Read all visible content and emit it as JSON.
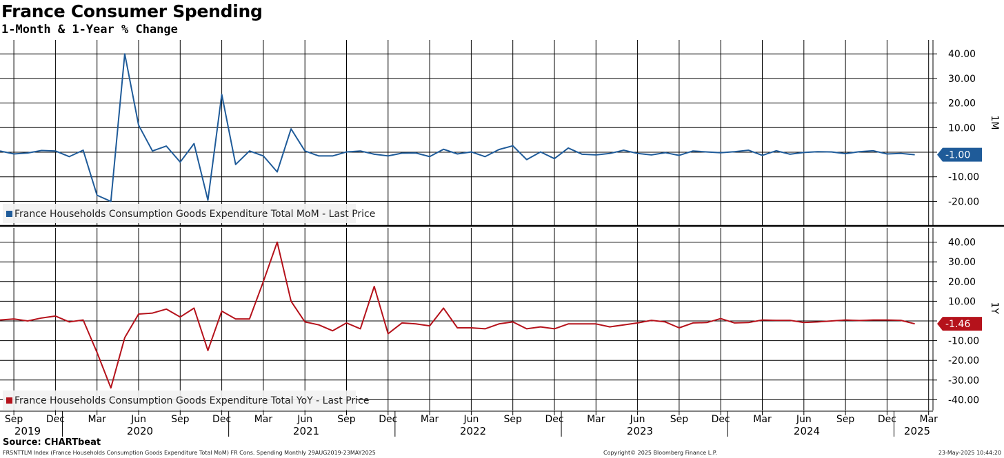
{
  "title": "France Consumer Spending",
  "subtitle": "1-Month & 1-Year % Change",
  "source": "Source: CHARTbeat",
  "footer": {
    "index_text": "FRSNTTLM Index (France Households Consumption Goods Expenditure Total MoM) FR Cons. Spending  Monthly 29AUG2019-23MAY2025",
    "copyright": "Copyright© 2025 Bloomberg Finance L.P.",
    "timestamp": "23-May-2025 10:44:20"
  },
  "colors": {
    "mom": "#1f5b99",
    "yoy": "#b5121b",
    "grid": "#000000"
  },
  "x_axis": {
    "month_ticks": [
      "Sep",
      "Dec",
      "Mar",
      "Jun",
      "Sep",
      "Dec",
      "Mar",
      "Jun",
      "Sep",
      "Dec",
      "Mar",
      "Jun",
      "Sep",
      "Dec",
      "Mar",
      "Jun",
      "Sep",
      "Dec",
      "Mar",
      "Jun",
      "Sep",
      "Dec",
      "Mar"
    ],
    "year_labels": [
      "2019",
      "2020",
      "2021",
      "2022",
      "2023",
      "2024",
      "2025"
    ]
  },
  "chart_data": [
    {
      "type": "line",
      "panel": "top",
      "x_start": "2019-08",
      "x_end": "2025-04",
      "ylim": [
        -30,
        45
      ],
      "yticks": [
        "40.00",
        "30.00",
        "20.00",
        "10.00",
        "0.00",
        "-10.00",
        "-20.00"
      ],
      "axis_label": "1M",
      "last_value_label": "-1.00",
      "legend_position": "bottom-left",
      "series": [
        {
          "name": "France Households Consumption Goods Expenditure Total MoM - Last Price",
          "values": [
            0.5,
            -0.7,
            -0.3,
            0.7,
            0.5,
            -1.8,
            0.8,
            -17.5,
            -20,
            40,
            11,
            0.5,
            2.5,
            -4,
            3.5,
            -19.5,
            23.5,
            -5,
            0.5,
            -1.5,
            -8,
            9.5,
            0.5,
            -1.5,
            -1.5,
            0.1,
            0.5,
            -0.8,
            -1.5,
            -0.4,
            -0.3,
            -1.8,
            1.2,
            -0.7,
            0.1,
            -1.8,
            1.1,
            2.6,
            -3,
            0.1,
            -2.6,
            1.7,
            -0.8,
            -1.1,
            -0.5,
            0.8,
            -0.5,
            -1.1,
            -0.2,
            -1.3,
            0.5,
            0.1,
            -0.2,
            0.2,
            0.8,
            -1.3,
            0.6,
            -0.8,
            -0.1,
            0.2,
            0.1,
            -0.6,
            0.2,
            0.6,
            -0.7,
            -0.5,
            -1
          ]
        }
      ]
    },
    {
      "type": "line",
      "panel": "bottom",
      "x_start": "2019-08",
      "x_end": "2025-04",
      "ylim": [
        -45,
        45
      ],
      "yticks": [
        "40.00",
        "30.00",
        "20.00",
        "10.00",
        "0.00",
        "-10.00",
        "-20.00",
        "-30.00",
        "-40.00"
      ],
      "axis_label": "1Y",
      "last_value_label": "-1.46",
      "legend_position": "bottom-left",
      "series": [
        {
          "name": "France Households Consumption Goods Expenditure Total YoY - Last Price",
          "values": [
            0.5,
            1,
            0,
            1.5,
            2.5,
            -0.5,
            0.5,
            -16,
            -34,
            -8.5,
            3.5,
            4,
            6,
            2,
            6.5,
            -15,
            5,
            1,
            1,
            20,
            40,
            10,
            -0.5,
            -2,
            -5,
            -1,
            -4,
            17.5,
            -6.5,
            -1,
            -1.5,
            -2.5,
            6.5,
            -3.5,
            -3.5,
            -4,
            -1.5,
            -0.5,
            -4,
            -3,
            -4,
            -1.5,
            -1.5,
            -1.5,
            -3,
            -2,
            -1,
            0.3,
            -0.5,
            -3.5,
            -1,
            -0.8,
            1.2,
            -1,
            -0.8,
            0.5,
            0.3,
            0.3,
            -0.8,
            -0.5,
            0,
            0.5,
            0.2,
            0.5,
            0.5,
            0.3,
            -1.46
          ]
        }
      ]
    }
  ]
}
